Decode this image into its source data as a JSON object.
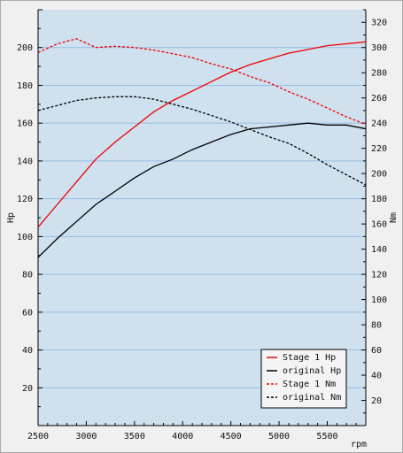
{
  "chart_data": {
    "type": "line",
    "xlabel": "rpm",
    "ylabel_left": "Hp",
    "ylabel_right": "Nm",
    "xlim": [
      2500,
      5900
    ],
    "ylim_left": [
      0,
      220
    ],
    "ylim_right": [
      0,
      330
    ],
    "x_ticks": [
      2500,
      3000,
      3500,
      4000,
      4500,
      5000,
      5500
    ],
    "y_ticks_left": [
      20,
      40,
      60,
      80,
      100,
      120,
      140,
      160,
      180,
      200
    ],
    "y_ticks_right": [
      20,
      40,
      60,
      80,
      100,
      120,
      140,
      160,
      180,
      200,
      220,
      240,
      260,
      280,
      300,
      320
    ],
    "grid": true,
    "legend_position": "bottom-right",
    "colors": {
      "stage1": "#ee0000",
      "original": "#000000",
      "plot_bg": "#cfe0ef",
      "grid": "#96bde3"
    },
    "series": [
      {
        "name": "Stage 1 Hp",
        "axis": "left",
        "color": "#ee0000",
        "dash": "solid",
        "x": [
          2500,
          2700,
          2900,
          3100,
          3300,
          3500,
          3700,
          3900,
          4100,
          4300,
          4500,
          4700,
          4900,
          5100,
          5300,
          5500,
          5700,
          5900
        ],
        "values": [
          105,
          117,
          129,
          141,
          150,
          158,
          166,
          172,
          177,
          182,
          187,
          191,
          194,
          197,
          199,
          201,
          202,
          203
        ]
      },
      {
        "name": "original Hp",
        "axis": "left",
        "color": "#000000",
        "dash": "solid",
        "x": [
          2500,
          2700,
          2900,
          3100,
          3300,
          3500,
          3700,
          3900,
          4100,
          4300,
          4500,
          4700,
          4900,
          5100,
          5300,
          5500,
          5700,
          5900
        ],
        "values": [
          89,
          99,
          108,
          117,
          124,
          131,
          137,
          141,
          146,
          150,
          154,
          157,
          158,
          159,
          160,
          159,
          159,
          157
        ]
      },
      {
        "name": "Stage 1 Nm",
        "axis": "right",
        "color": "#ee0000",
        "dash": "dashed",
        "x": [
          2500,
          2700,
          2900,
          3100,
          3300,
          3500,
          3700,
          3900,
          4100,
          4300,
          4500,
          4700,
          4900,
          5100,
          5300,
          5500,
          5700,
          5900
        ],
        "values": [
          296,
          303,
          307,
          300,
          301,
          300,
          298,
          295,
          292,
          287,
          283,
          277,
          272,
          265,
          259,
          252,
          245,
          239
        ]
      },
      {
        "name": "original Nm",
        "axis": "right",
        "color": "#000000",
        "dash": "dashed",
        "x": [
          2500,
          2700,
          2900,
          3100,
          3300,
          3500,
          3700,
          3900,
          4100,
          4300,
          4500,
          4700,
          4900,
          5100,
          5300,
          5500,
          5700,
          5900
        ],
        "values": [
          250,
          254,
          258,
          260,
          261,
          261,
          259,
          255,
          251,
          246,
          241,
          235,
          229,
          224,
          216,
          207,
          199,
          191
        ]
      }
    ]
  }
}
